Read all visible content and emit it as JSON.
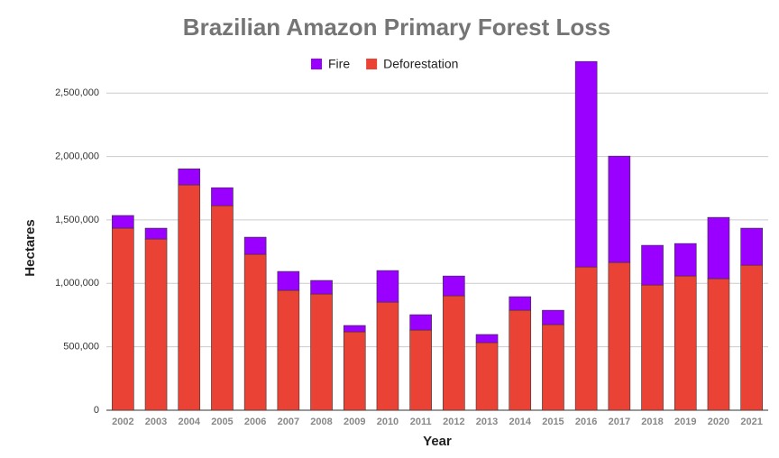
{
  "chart_data": {
    "type": "stacked_bar",
    "title": "Brazilian Amazon Primary Forest Loss",
    "x_label": "Year",
    "y_label": "Hectares",
    "categories": [
      "2002",
      "2003",
      "2004",
      "2005",
      "2006",
      "2007",
      "2008",
      "2009",
      "2010",
      "2011",
      "2012",
      "2013",
      "2014",
      "2015",
      "2016",
      "2017",
      "2018",
      "2019",
      "2020",
      "2021"
    ],
    "series": [
      {
        "name": "Deforestation",
        "color": "#ea4335",
        "values": [
          1435000,
          1349000,
          1776000,
          1612000,
          1229000,
          945000,
          916000,
          618000,
          852000,
          632000,
          902000,
          533000,
          788000,
          675000,
          1129000,
          1165000,
          987000,
          1058000,
          1037000,
          1143000
        ]
      },
      {
        "name": "Fire",
        "color": "#9900ff",
        "values": [
          100000,
          86000,
          127000,
          142000,
          135000,
          149000,
          107000,
          50000,
          249000,
          121000,
          156000,
          64000,
          107000,
          113000,
          1620000,
          838000,
          313000,
          256000,
          483000,
          292000
        ]
      }
    ],
    "legend_order": [
      1,
      0
    ],
    "ylim": [
      0,
      2800000
    ],
    "yticks": [
      0,
      {
        "value": 500000,
        "label": "500,000"
      },
      {
        "value": 1000000,
        "label": "1,000,000"
      },
      {
        "value": 1500000,
        "label": "1,500,000"
      },
      {
        "value": 2000000,
        "label": "2,000,000"
      },
      {
        "value": 2500000,
        "label": "2,500,000"
      }
    ],
    "grid": true
  }
}
